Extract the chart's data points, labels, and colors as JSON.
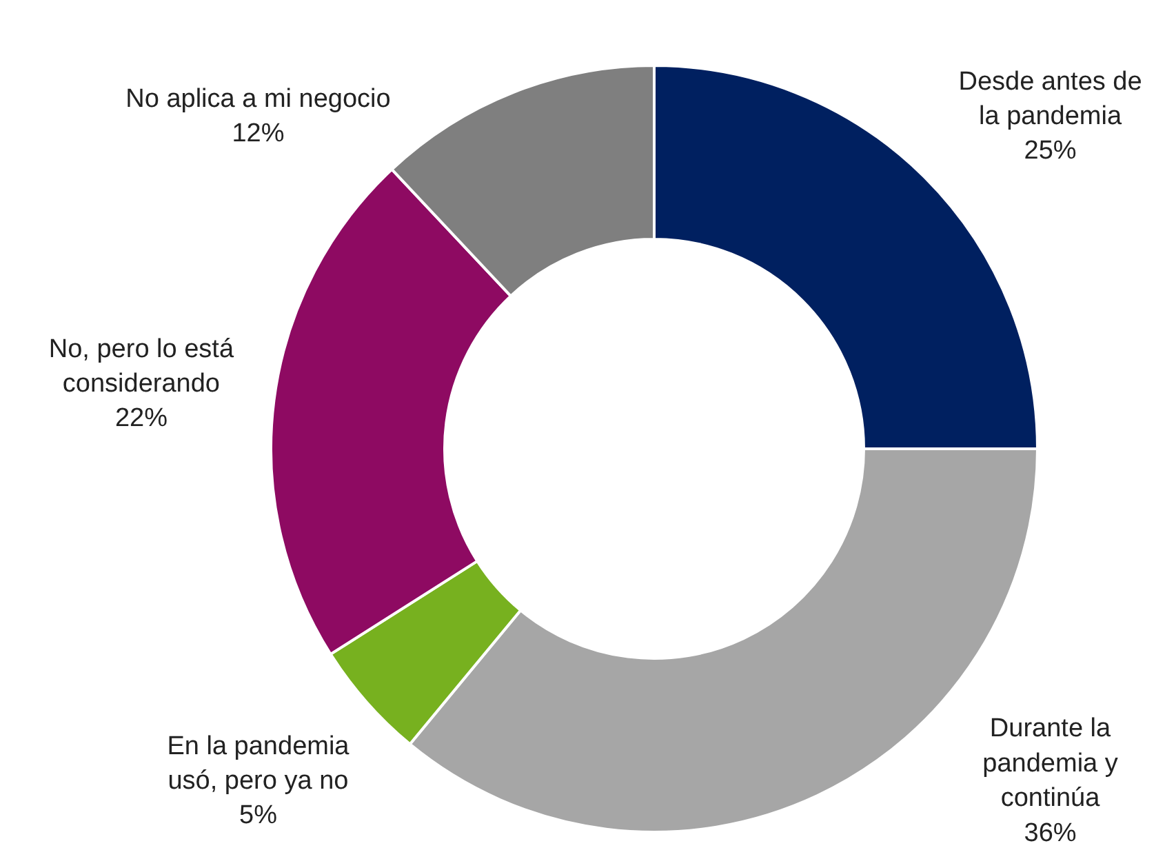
{
  "chart_data": {
    "type": "donut",
    "categories": [
      "Desde antes de\nla pandemia",
      "Durante la\npandemia y\ncontinúa",
      "En la pandemia\nusó, pero ya no",
      "No, pero lo está\nconsiderando",
      "No aplica a mi negocio"
    ],
    "values": [
      25,
      36,
      5,
      22,
      12
    ],
    "colors": [
      "#002060",
      "#a6a6a6",
      "#77b11f",
      "#8e0a62",
      "#7f7f7f"
    ],
    "value_labels": [
      "25%",
      "36%",
      "5%",
      "22%",
      "12%"
    ]
  }
}
